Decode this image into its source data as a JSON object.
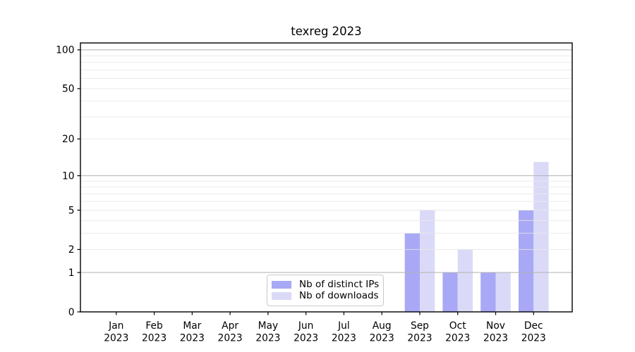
{
  "chart_data": {
    "type": "bar",
    "title": "texreg 2023",
    "categories": [
      "Jan",
      "Feb",
      "Mar",
      "Apr",
      "May",
      "Jun",
      "Jul",
      "Aug",
      "Sep",
      "Oct",
      "Nov",
      "Dec"
    ],
    "x_tick_second_line": "2023",
    "series": [
      {
        "name": "Nb of distinct IPs",
        "color": "#a8a8f6",
        "values": [
          0,
          0,
          0,
          0,
          0,
          0,
          0,
          0,
          3,
          1,
          1,
          5
        ]
      },
      {
        "name": "Nb of downloads",
        "color": "#dadaf8",
        "values": [
          0,
          0,
          0,
          0,
          0,
          0,
          0,
          0,
          5,
          2,
          1,
          13
        ]
      }
    ],
    "yscale": "log1p",
    "ylim": [
      0,
      113
    ],
    "y_tick_values": [
      0,
      1,
      2,
      5,
      10,
      20,
      50,
      100
    ],
    "y_gridlines_major": [
      1,
      10,
      100
    ],
    "y_gridlines_minor": [
      2,
      3,
      4,
      5,
      6,
      7,
      8,
      9,
      20,
      30,
      40,
      50,
      60,
      70,
      80,
      90
    ],
    "xlabel": "",
    "ylabel": "",
    "grid": true,
    "legend_position": "lower center"
  },
  "colors": {
    "background": "#ffffff",
    "spine": "#000000",
    "grid_major": "#b2b2b2",
    "grid_minor": "#e8e8e8",
    "tick_text": "#000000",
    "legend_border": "#c9c9c9"
  }
}
